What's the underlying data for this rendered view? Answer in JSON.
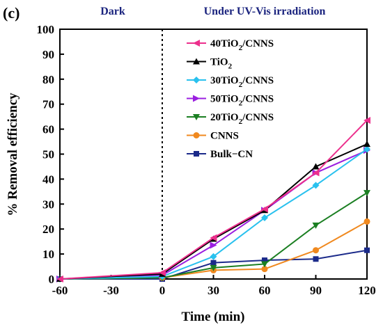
{
  "panel_label": "(c)",
  "regions": {
    "dark": "Dark",
    "light": "Under UV-Vis irradiation"
  },
  "chart_data": {
    "type": "line",
    "xlabel": "Time (min)",
    "ylabel": "% Removal efficiency",
    "xlim": [
      -60,
      120
    ],
    "ylim": [
      0,
      100
    ],
    "xticks": [
      -60,
      -30,
      0,
      30,
      60,
      90,
      120
    ],
    "yticks": [
      0,
      10,
      20,
      30,
      40,
      50,
      60,
      70,
      80,
      90,
      100
    ],
    "divider_x": 0,
    "grid": false,
    "legend_position": "upper-right inside plot",
    "x": [
      -60,
      0,
      30,
      60,
      90,
      120
    ],
    "series": [
      {
        "name": "40TiO2/CNNS",
        "name_main": "40TiO",
        "name_sub": "2",
        "name_tail": "/CNNS",
        "color": "#ec2f8c",
        "marker": "triangle-left",
        "values": [
          0,
          2.5,
          16.5,
          28,
          42.5,
          63.5
        ]
      },
      {
        "name": "TiO2",
        "name_main": "TiO",
        "name_sub": "2",
        "name_tail": "",
        "color": "#000000",
        "marker": "triangle-up",
        "values": [
          0,
          2,
          16,
          27.5,
          45,
          54
        ]
      },
      {
        "name": "30TiO2/CNNS",
        "name_main": "30TiO",
        "name_sub": "2",
        "name_tail": "/CNNS",
        "color": "#29c1ee",
        "marker": "diamond",
        "values": [
          0,
          1,
          9,
          24.5,
          37.5,
          52
        ]
      },
      {
        "name": "50TiO2/CNNS",
        "name_main": "50TiO",
        "name_sub": "2",
        "name_tail": "/CNNS",
        "color": "#9b1fe0",
        "marker": "triangle-right",
        "values": [
          0,
          1.5,
          13.5,
          27.5,
          42.5,
          51.5
        ]
      },
      {
        "name": "20TiO2/CNNS",
        "name_main": "20TiO",
        "name_sub": "2",
        "name_tail": "/CNNS",
        "color": "#1b7f22",
        "marker": "triangle-down",
        "values": [
          0,
          0.5,
          4.5,
          6,
          21.5,
          34.5
        ]
      },
      {
        "name": "CNNS",
        "name_main": "CNNS",
        "name_sub": "",
        "name_tail": "",
        "color": "#f0891f",
        "marker": "circle",
        "values": [
          0,
          0.5,
          3.5,
          4,
          11.5,
          23
        ]
      },
      {
        "name": "Bulk−CN",
        "name_main": "Bulk−CN",
        "name_sub": "",
        "name_tail": "",
        "color": "#1b2a8a",
        "marker": "square",
        "values": [
          0,
          0,
          6.5,
          7.5,
          8,
          11.5
        ]
      }
    ]
  }
}
